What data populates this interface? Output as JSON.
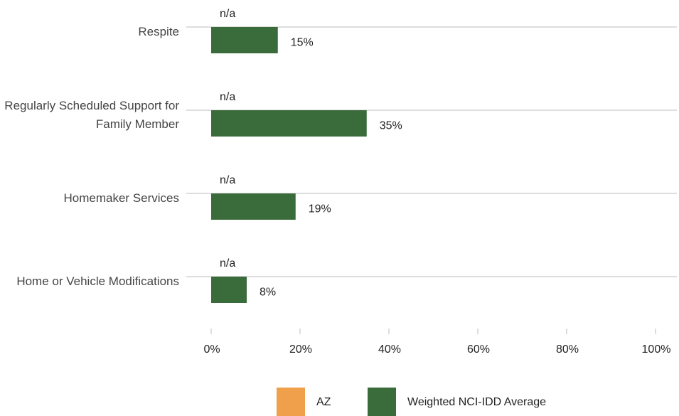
{
  "chart_data": {
    "type": "bar",
    "orientation": "horizontal",
    "categories": [
      "Respite",
      "Regularly Scheduled Support for Family Member",
      "Homemaker Services",
      "Home or Vehicle Modifications"
    ],
    "series": [
      {
        "name": "AZ",
        "color": "#f0a04b",
        "values": [
          null,
          null,
          null,
          null
        ],
        "value_labels": [
          "n/a",
          "n/a",
          "n/a",
          "n/a"
        ]
      },
      {
        "name": "Weighted NCI-IDD Average",
        "color": "#3a6b3a",
        "values": [
          15,
          35,
          19,
          8
        ],
        "value_labels": [
          "15%",
          "35%",
          "19%",
          "8%"
        ]
      }
    ],
    "xlim": [
      0,
      100
    ],
    "xticks": [
      {
        "value": 0,
        "label": "0%"
      },
      {
        "value": 20,
        "label": "20%"
      },
      {
        "value": 40,
        "label": "40%"
      },
      {
        "value": 60,
        "label": "60%"
      },
      {
        "value": 80,
        "label": "80%"
      },
      {
        "value": 100,
        "label": "100%"
      }
    ],
    "legend": "bottom"
  }
}
